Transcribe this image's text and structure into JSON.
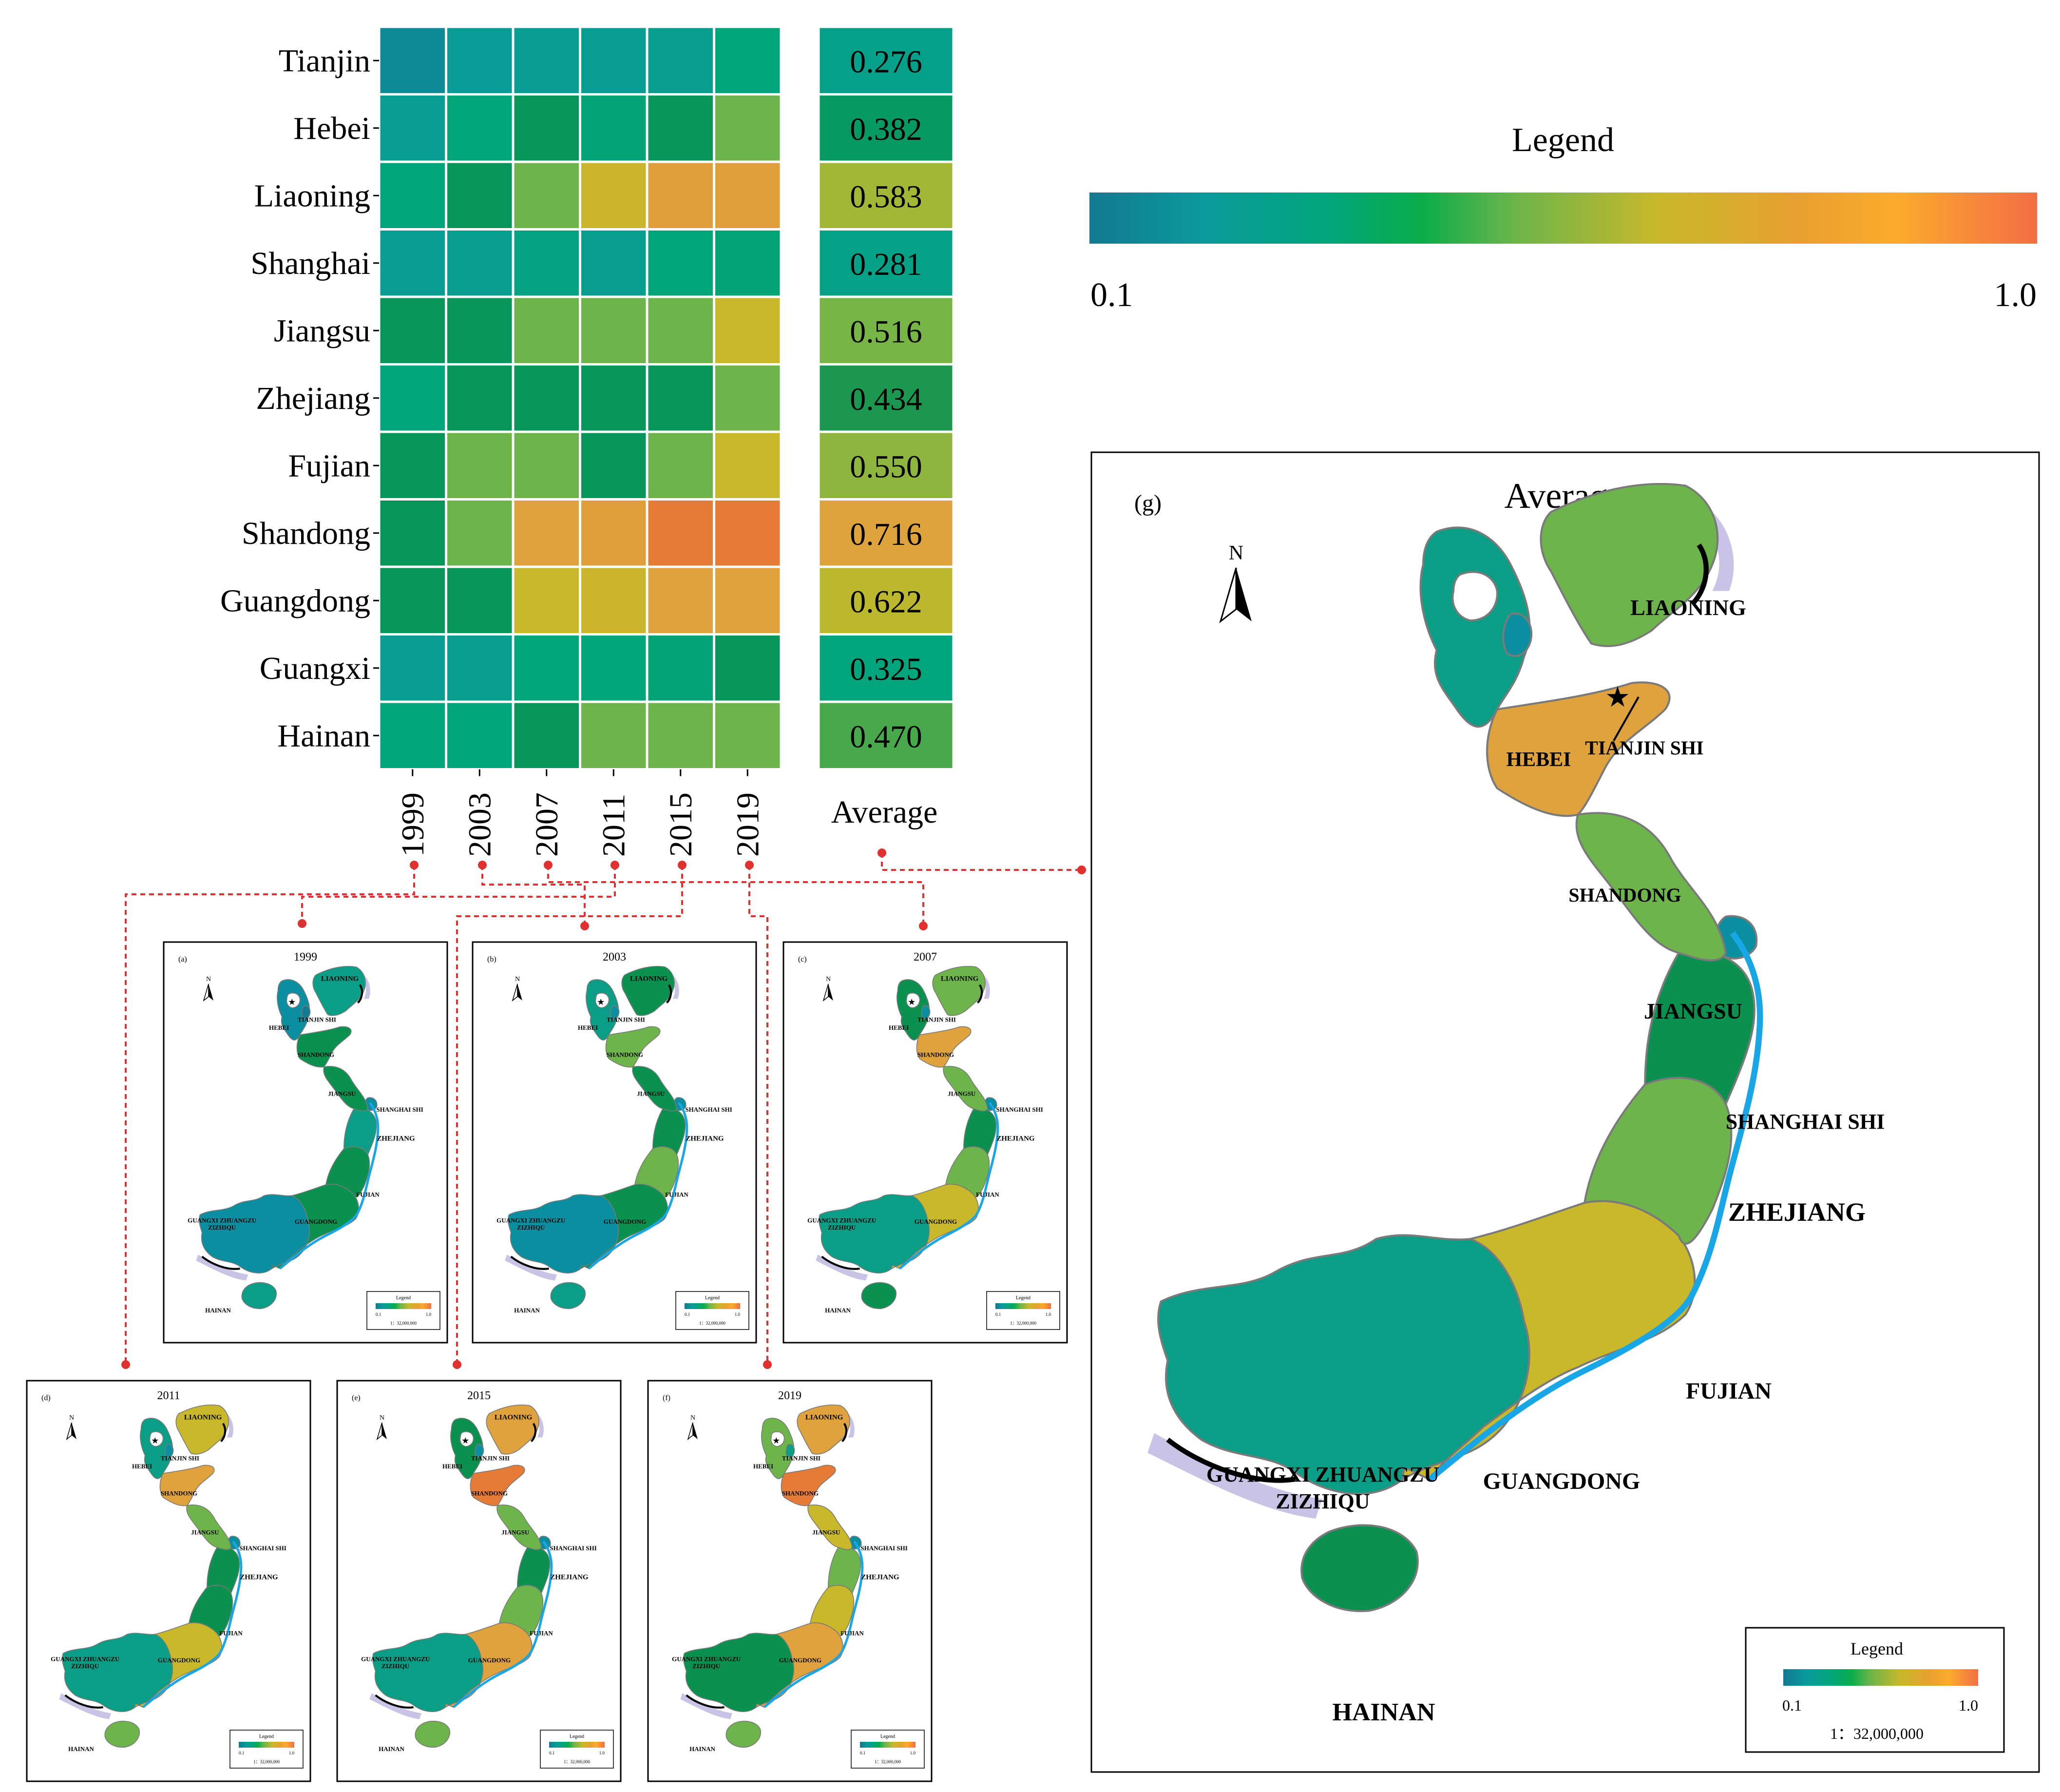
{
  "heatmap": {
    "provinces": [
      "Tianjin",
      "Hebei",
      "Liaoning",
      "Shanghai",
      "Jiangsu",
      "Zhejiang",
      "Fujian",
      "Shandong",
      "Guangdong",
      "Guangxi",
      "Hainan"
    ],
    "years": [
      "1999",
      "2003",
      "2007",
      "2011",
      "2015",
      "2019"
    ],
    "average_label": "Average",
    "values": [
      [
        0.15,
        0.23,
        0.24,
        0.24,
        0.25,
        0.33
      ],
      [
        0.24,
        0.33,
        0.4,
        0.34,
        0.4,
        0.5
      ],
      [
        0.33,
        0.4,
        0.5,
        0.65,
        0.73,
        0.73
      ],
      [
        0.24,
        0.25,
        0.3,
        0.25,
        0.33,
        0.34
      ],
      [
        0.4,
        0.4,
        0.5,
        0.5,
        0.5,
        0.64
      ],
      [
        0.33,
        0.4,
        0.4,
        0.4,
        0.4,
        0.5
      ],
      [
        0.4,
        0.5,
        0.5,
        0.4,
        0.5,
        0.64
      ],
      [
        0.4,
        0.5,
        0.72,
        0.73,
        0.85,
        0.86
      ],
      [
        0.4,
        0.4,
        0.64,
        0.65,
        0.72,
        0.72
      ],
      [
        0.24,
        0.25,
        0.33,
        0.33,
        0.34,
        0.4
      ],
      [
        0.33,
        0.33,
        0.4,
        0.5,
        0.5,
        0.5
      ]
    ],
    "averages": [
      "0.276",
      "0.382",
      "0.583",
      "0.281",
      "0.516",
      "0.434",
      "0.550",
      "0.716",
      "0.622",
      "0.325",
      "0.470"
    ],
    "average_values": [
      0.276,
      0.382,
      0.583,
      0.281,
      0.516,
      0.434,
      0.55,
      0.716,
      0.622,
      0.325,
      0.47
    ]
  },
  "legend": {
    "title": "Legend",
    "min": "0.1",
    "max": "1.0",
    "colors": [
      "#127a91",
      "#0a9a9b",
      "#01a57a",
      "#0aad4a",
      "#6db54a",
      "#c8b82a",
      "#e8a030",
      "#fcab2c",
      "#f36e45"
    ]
  },
  "main_map": {
    "panel_label": "(g)",
    "title": "Average",
    "north": "N",
    "legend_title": "Legend",
    "legend_min": "0.1",
    "legend_max": "1.0",
    "scale": "1：32,000,000",
    "labels": {
      "liaoning": "LIAONING",
      "hebei": "HEBEI",
      "tianjin": "TIANJIN SHI",
      "shandong": "SHANDONG",
      "jiangsu": "JIANGSU",
      "shanghai": "SHANGHAI SHI",
      "zhejiang": "ZHEJIANG",
      "fujian": "FUJIAN",
      "guangdong": "GUANGDONG",
      "guangxi_1": "GUANGXI ZHUANGZU",
      "guangxi_2": "ZIZHIQU",
      "hainan": "HAINAN"
    },
    "colors": {
      "liaoning": "#6db54a",
      "hebei": "#0a9e86",
      "tianjin": "#0a8fa0",
      "shandong": "#dfa23c",
      "jiangsu": "#6db54a",
      "shanghai": "#0a8fa0",
      "zhejiang": "#0a9150",
      "fujian": "#6db54a",
      "guangdong": "#c8b82a",
      "guangxi": "#0a9e86",
      "hainan": "#0a9150"
    }
  },
  "small_maps": [
    {
      "label": "(a)",
      "title": "1999",
      "colors": {
        "liaoning": "#0a9e86",
        "hebei": "#0a8fa0",
        "tianjin": "#127a91",
        "shandong": "#0a9150",
        "jiangsu": "#0a9150",
        "zhejiang": "#0a9e86",
        "fujian": "#0a9150",
        "guangdong": "#0a9150",
        "guangxi": "#0a8fa0",
        "hainan": "#0a9e86"
      }
    },
    {
      "label": "(b)",
      "title": "2003",
      "colors": {
        "liaoning": "#0a9150",
        "hebei": "#0a9e86",
        "tianjin": "#0a8fa0",
        "shandong": "#6db54a",
        "jiangsu": "#0a9150",
        "zhejiang": "#0a9150",
        "fujian": "#6db54a",
        "guangdong": "#0a9150",
        "guangxi": "#0a8fa0",
        "hainan": "#0a9e86"
      }
    },
    {
      "label": "(c)",
      "title": "2007",
      "colors": {
        "liaoning": "#6db54a",
        "hebei": "#0a9150",
        "tianjin": "#0a8fa0",
        "shandong": "#dfa23c",
        "jiangsu": "#6db54a",
        "zhejiang": "#0a9150",
        "fujian": "#6db54a",
        "guangdong": "#c8b82a",
        "guangxi": "#0a9e86",
        "hainan": "#0a9150"
      }
    },
    {
      "label": "(d)",
      "title": "2011",
      "colors": {
        "liaoning": "#c8b82a",
        "hebei": "#0a9e86",
        "tianjin": "#0a8fa0",
        "shandong": "#dfa23c",
        "jiangsu": "#6db54a",
        "zhejiang": "#0a9150",
        "fujian": "#0a9150",
        "guangdong": "#c8b82a",
        "guangxi": "#0a9e86",
        "hainan": "#6db54a"
      }
    },
    {
      "label": "(e)",
      "title": "2015",
      "colors": {
        "liaoning": "#dfa23c",
        "hebei": "#0a9150",
        "tianjin": "#0a8fa0",
        "shandong": "#e67b35",
        "jiangsu": "#6db54a",
        "zhejiang": "#0a9150",
        "fujian": "#6db54a",
        "guangdong": "#dfa23c",
        "guangxi": "#0a9e86",
        "hainan": "#6db54a"
      }
    },
    {
      "label": "(f)",
      "title": "2019",
      "colors": {
        "liaoning": "#dfa23c",
        "hebei": "#6db54a",
        "tianjin": "#0a9e86",
        "shandong": "#e67b35",
        "jiangsu": "#c8b82a",
        "zhejiang": "#6db54a",
        "fujian": "#c8b82a",
        "guangdong": "#dfa23c",
        "guangxi": "#0a9150",
        "hainan": "#6db54a"
      }
    }
  ],
  "small_labels": {
    "liaoning": "LIAONING",
    "hebei": "HEBEI",
    "tianjin": "TIANJIN SHI",
    "shandong": "SHANDONG",
    "jiangsu": "JIANGSU",
    "shanghai": "SHANGHAI SHI",
    "zhejiang": "ZHEJIANG",
    "fujian": "FUJIAN",
    "guangdong": "GUANGDONG",
    "guangxi_1": "GUANGXI ZHUANGZU",
    "guangxi_2": "ZIZHIQU",
    "hainan": "HAINAN",
    "north": "N",
    "legend_title": "Legend",
    "legend_min": "0.1",
    "legend_max": "1.0",
    "scale": "1：32,000,000"
  }
}
